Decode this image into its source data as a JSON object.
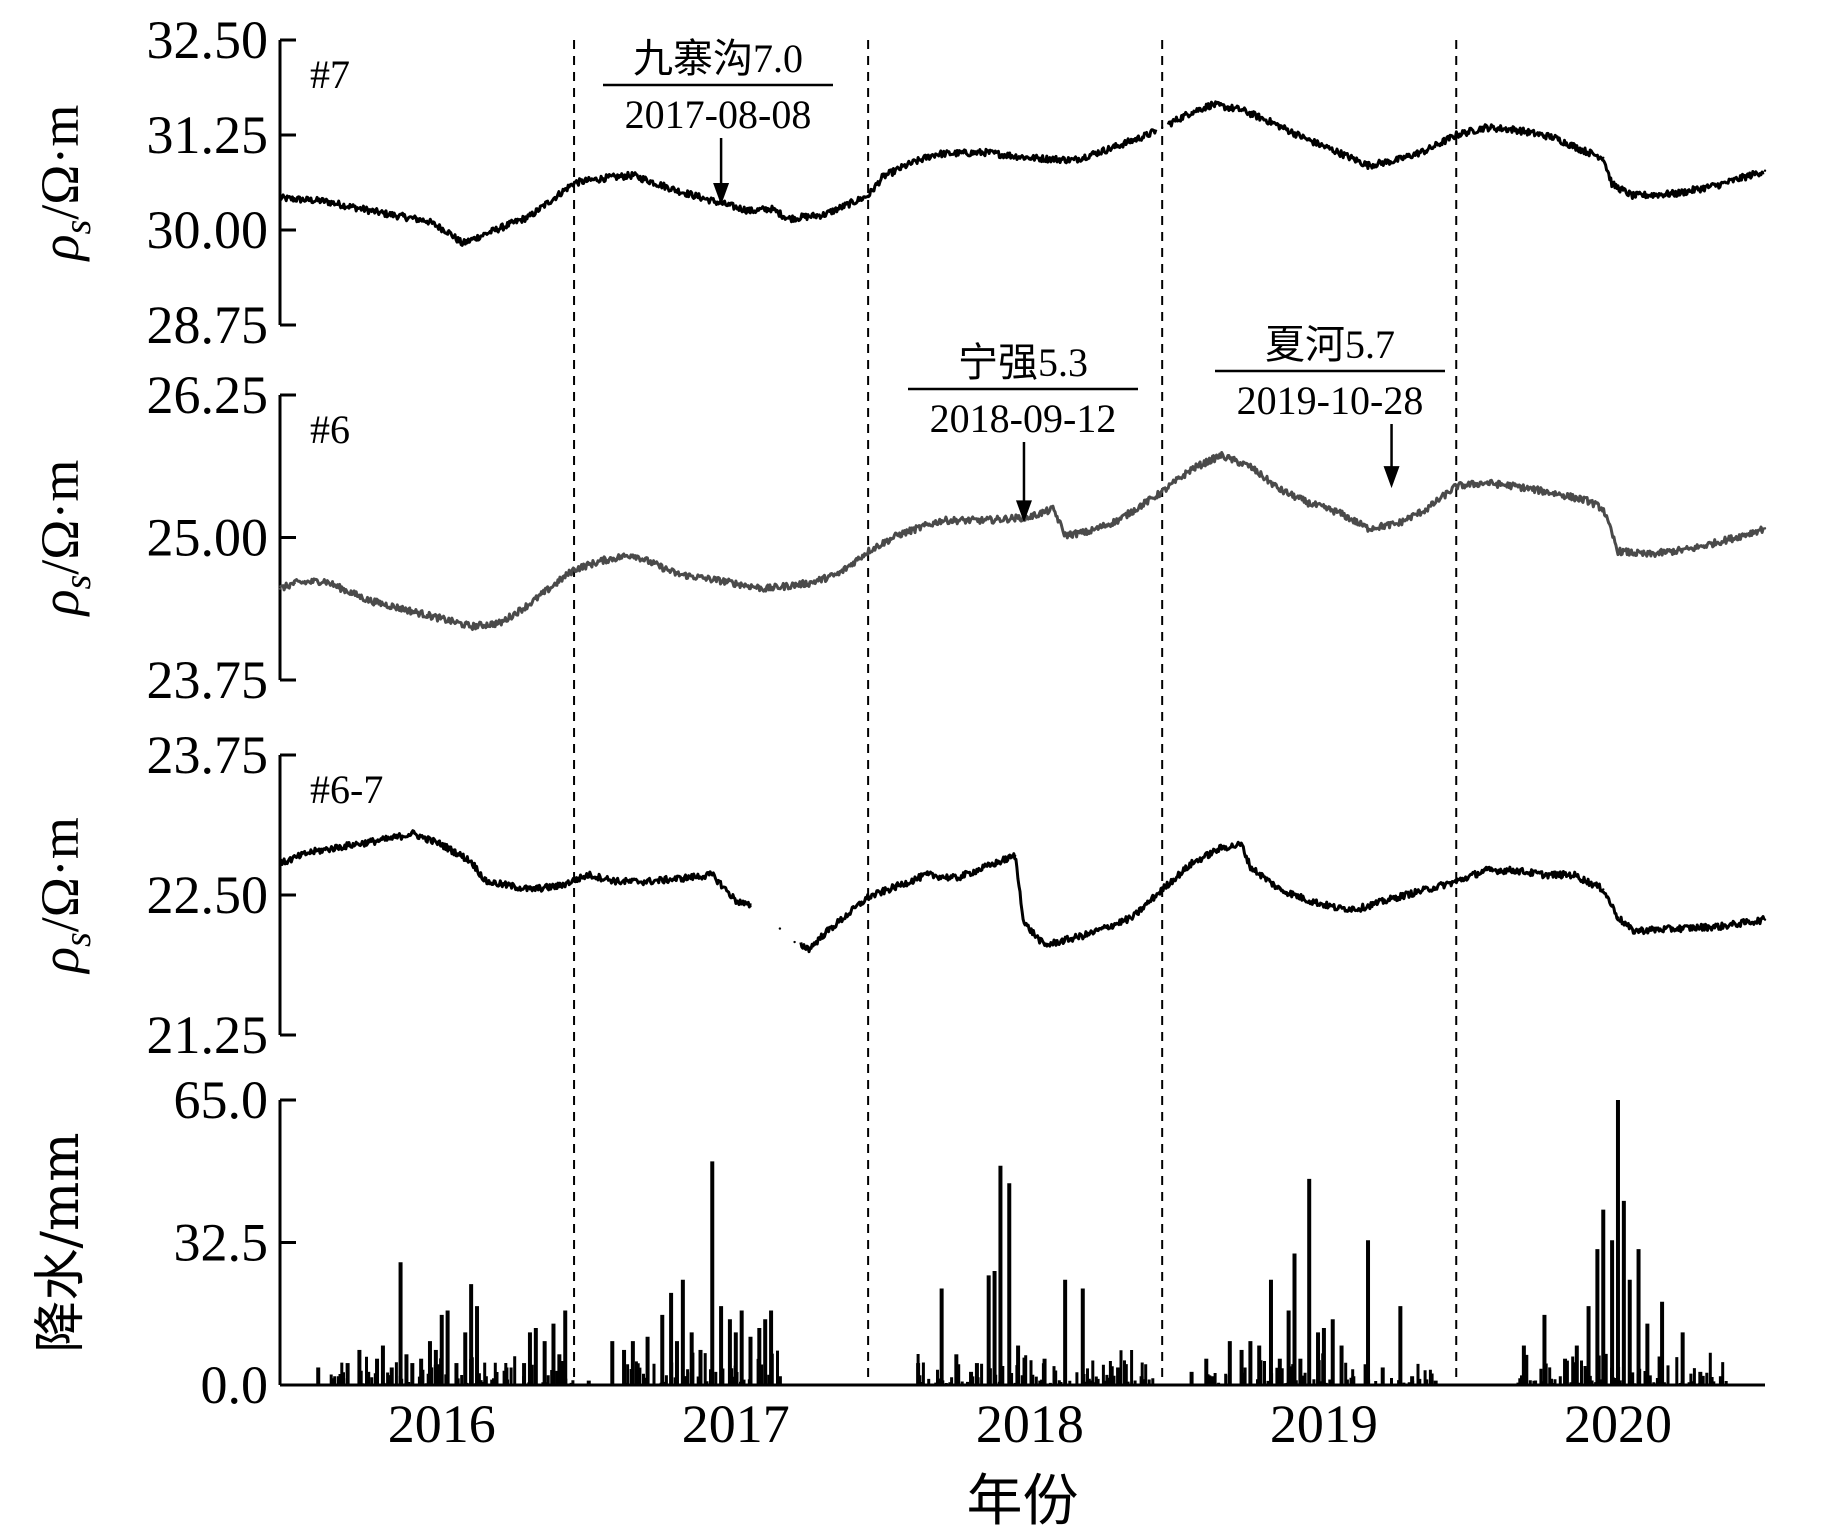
{
  "chart_data": {
    "type": "line",
    "x_axis": {
      "label": "年份",
      "ticks": [
        "2016",
        "2017",
        "2018",
        "2019",
        "2020"
      ],
      "range": [
        2015.45,
        2020.5
      ],
      "year_dividers": [
        2016.45,
        2017.45,
        2018.45,
        2019.45
      ]
    },
    "panels": [
      {
        "id": "p7",
        "label": "#7",
        "ylabel": "ρs/Ω·m",
        "ylim": [
          28.75,
          32.5
        ],
        "yticks": [
          "32.50",
          "31.25",
          "30.00",
          "28.75"
        ],
        "color": "#000000",
        "points": [
          [
            2015.45,
            30.42
          ],
          [
            2015.6,
            30.38
          ],
          [
            2015.8,
            30.22
          ],
          [
            2015.95,
            30.12
          ],
          [
            2016.02,
            29.98
          ],
          [
            2016.07,
            29.82
          ],
          [
            2016.15,
            29.95
          ],
          [
            2016.3,
            30.18
          ],
          [
            2016.45,
            30.62
          ],
          [
            2016.55,
            30.68
          ],
          [
            2016.65,
            30.72
          ],
          [
            2016.8,
            30.52
          ],
          [
            2016.95,
            30.35
          ],
          [
            2017.05,
            30.25
          ],
          [
            2017.12,
            30.28
          ],
          [
            2017.18,
            30.15
          ],
          [
            2017.3,
            30.2
          ],
          [
            2017.45,
            30.45
          ],
          [
            2017.5,
            30.7
          ],
          [
            2017.58,
            30.85
          ],
          [
            2017.68,
            31.0
          ],
          [
            2017.85,
            31.02
          ],
          [
            2018.0,
            30.95
          ],
          [
            2018.15,
            30.92
          ],
          [
            2018.28,
            31.08
          ],
          [
            2018.4,
            31.25
          ],
          [
            2018.45,
            31.35
          ],
          [
            2018.55,
            31.55
          ],
          [
            2018.62,
            31.65
          ],
          [
            2018.72,
            31.58
          ],
          [
            2018.82,
            31.42
          ],
          [
            2018.95,
            31.18
          ],
          [
            2019.05,
            31.02
          ],
          [
            2019.15,
            30.85
          ],
          [
            2019.25,
            30.92
          ],
          [
            2019.35,
            31.05
          ],
          [
            2019.45,
            31.25
          ],
          [
            2019.55,
            31.35
          ],
          [
            2019.65,
            31.32
          ],
          [
            2019.78,
            31.22
          ],
          [
            2019.88,
            31.05
          ],
          [
            2019.95,
            30.95
          ],
          [
            2019.98,
            30.6
          ],
          [
            2020.05,
            30.45
          ],
          [
            2020.2,
            30.48
          ],
          [
            2020.35,
            30.6
          ],
          [
            2020.5,
            30.78
          ]
        ],
        "gaps": [
          [
            2018.43,
            2018.47
          ]
        ]
      },
      {
        "id": "p6",
        "label": "#6",
        "ylabel": "ρs/Ω·m",
        "ylim": [
          23.75,
          26.25
        ],
        "yticks": [
          "26.25",
          "25.00",
          "23.75"
        ],
        "color": "#4a4a4a",
        "points": [
          [
            2015.45,
            24.55
          ],
          [
            2015.5,
            24.6
          ],
          [
            2015.6,
            24.62
          ],
          [
            2015.75,
            24.45
          ],
          [
            2015.95,
            24.32
          ],
          [
            2016.1,
            24.22
          ],
          [
            2016.2,
            24.25
          ],
          [
            2016.3,
            24.42
          ],
          [
            2016.45,
            24.72
          ],
          [
            2016.55,
            24.8
          ],
          [
            2016.65,
            24.85
          ],
          [
            2016.8,
            24.68
          ],
          [
            2016.95,
            24.62
          ],
          [
            2017.1,
            24.55
          ],
          [
            2017.25,
            24.6
          ],
          [
            2017.35,
            24.68
          ],
          [
            2017.45,
            24.88
          ],
          [
            2017.55,
            25.02
          ],
          [
            2017.7,
            25.15
          ],
          [
            2017.85,
            25.15
          ],
          [
            2018.0,
            25.18
          ],
          [
            2018.08,
            25.25
          ],
          [
            2018.12,
            25.02
          ],
          [
            2018.2,
            25.05
          ],
          [
            2018.3,
            25.15
          ],
          [
            2018.45,
            25.4
          ],
          [
            2018.55,
            25.6
          ],
          [
            2018.65,
            25.72
          ],
          [
            2018.75,
            25.62
          ],
          [
            2018.85,
            25.42
          ],
          [
            2018.95,
            25.3
          ],
          [
            2019.05,
            25.22
          ],
          [
            2019.15,
            25.08
          ],
          [
            2019.25,
            25.12
          ],
          [
            2019.35,
            25.25
          ],
          [
            2019.45,
            25.45
          ],
          [
            2019.55,
            25.48
          ],
          [
            2019.65,
            25.45
          ],
          [
            2019.8,
            25.38
          ],
          [
            2019.9,
            25.32
          ],
          [
            2019.95,
            25.25
          ],
          [
            2020.0,
            24.88
          ],
          [
            2020.1,
            24.85
          ],
          [
            2020.25,
            24.9
          ],
          [
            2020.4,
            25.0
          ],
          [
            2020.5,
            25.08
          ]
        ],
        "gaps": []
      },
      {
        "id": "p67",
        "label": "#6-7",
        "ylabel": "ρs/Ω·m",
        "ylim": [
          21.25,
          23.75
        ],
        "yticks": [
          "23.75",
          "22.50",
          "21.25"
        ],
        "color": "#000000",
        "points": [
          [
            2015.45,
            22.78
          ],
          [
            2015.55,
            22.88
          ],
          [
            2015.7,
            22.95
          ],
          [
            2015.82,
            23.0
          ],
          [
            2015.9,
            23.05
          ],
          [
            2016.0,
            22.95
          ],
          [
            2016.1,
            22.8
          ],
          [
            2016.15,
            22.62
          ],
          [
            2016.3,
            22.55
          ],
          [
            2016.4,
            22.58
          ],
          [
            2016.5,
            22.68
          ],
          [
            2016.6,
            22.62
          ],
          [
            2016.7,
            22.62
          ],
          [
            2016.82,
            22.65
          ],
          [
            2016.92,
            22.68
          ],
          [
            2017.0,
            22.45
          ],
          [
            2017.05,
            22.4
          ],
          [
            2017.15,
            22.2
          ],
          [
            2017.2,
            22.08
          ],
          [
            2017.25,
            22.02
          ],
          [
            2017.3,
            22.15
          ],
          [
            2017.45,
            22.48
          ],
          [
            2017.55,
            22.58
          ],
          [
            2017.65,
            22.68
          ],
          [
            2017.75,
            22.65
          ],
          [
            2017.88,
            22.78
          ],
          [
            2017.95,
            22.85
          ],
          [
            2017.98,
            22.25
          ],
          [
            2018.05,
            22.05
          ],
          [
            2018.2,
            22.15
          ],
          [
            2018.35,
            22.3
          ],
          [
            2018.45,
            22.55
          ],
          [
            2018.55,
            22.78
          ],
          [
            2018.65,
            22.92
          ],
          [
            2018.72,
            22.95
          ],
          [
            2018.75,
            22.75
          ],
          [
            2018.85,
            22.55
          ],
          [
            2018.95,
            22.45
          ],
          [
            2019.05,
            22.38
          ],
          [
            2019.12,
            22.38
          ],
          [
            2019.25,
            22.48
          ],
          [
            2019.45,
            22.62
          ],
          [
            2019.55,
            22.72
          ],
          [
            2019.65,
            22.72
          ],
          [
            2019.75,
            22.68
          ],
          [
            2019.85,
            22.68
          ],
          [
            2019.95,
            22.55
          ],
          [
            2020.0,
            22.3
          ],
          [
            2020.05,
            22.18
          ],
          [
            2020.2,
            22.2
          ],
          [
            2020.35,
            22.22
          ],
          [
            2020.5,
            22.28
          ]
        ],
        "gaps": [
          [
            2017.05,
            2017.22
          ]
        ]
      },
      {
        "id": "prain",
        "label": "",
        "ylabel": "降水/mm",
        "ylim": [
          0,
          65
        ],
        "yticks": [
          "65.0",
          "32.5",
          "0.0"
        ],
        "type": "bar",
        "color": "#000000",
        "bars": [
          [
            2015.58,
            4
          ],
          [
            2015.65,
            2
          ],
          [
            2015.68,
            5
          ],
          [
            2015.72,
            8
          ],
          [
            2015.75,
            3
          ],
          [
            2015.78,
            6
          ],
          [
            2015.8,
            9
          ],
          [
            2015.83,
            4
          ],
          [
            2015.86,
            28
          ],
          [
            2015.88,
            7
          ],
          [
            2015.9,
            5
          ],
          [
            2015.93,
            6
          ],
          [
            2015.96,
            10
          ],
          [
            2015.98,
            8
          ],
          [
            2016.0,
            16
          ],
          [
            2016.02,
            17
          ],
          [
            2016.05,
            5
          ],
          [
            2016.08,
            12
          ],
          [
            2016.1,
            23
          ],
          [
            2016.12,
            18
          ],
          [
            2016.15,
            2
          ],
          [
            2016.22,
            4
          ],
          [
            2016.28,
            5
          ],
          [
            2016.3,
            12
          ],
          [
            2016.32,
            13
          ],
          [
            2016.35,
            10
          ],
          [
            2016.38,
            14
          ],
          [
            2016.4,
            7
          ],
          [
            2016.42,
            17
          ],
          [
            2016.5,
            1
          ],
          [
            2016.58,
            10
          ],
          [
            2016.62,
            8
          ],
          [
            2016.65,
            10
          ],
          [
            2016.7,
            11
          ],
          [
            2016.75,
            16
          ],
          [
            2016.78,
            21
          ],
          [
            2016.8,
            10
          ],
          [
            2016.82,
            24
          ],
          [
            2016.85,
            12
          ],
          [
            2016.88,
            8
          ],
          [
            2016.92,
            51
          ],
          [
            2016.95,
            18
          ],
          [
            2016.98,
            15
          ],
          [
            2017.0,
            12
          ],
          [
            2017.02,
            17
          ],
          [
            2017.05,
            11
          ],
          [
            2017.08,
            13
          ],
          [
            2017.1,
            15
          ],
          [
            2017.12,
            17
          ],
          [
            2017.15,
            2
          ],
          [
            2017.62,
            5
          ],
          [
            2017.7,
            22
          ],
          [
            2017.75,
            7
          ],
          [
            2017.8,
            3
          ],
          [
            2017.82,
            5
          ],
          [
            2017.86,
            25
          ],
          [
            2017.88,
            26
          ],
          [
            2017.9,
            50
          ],
          [
            2017.93,
            46
          ],
          [
            2017.96,
            9
          ],
          [
            2018.05,
            6
          ],
          [
            2018.12,
            24
          ],
          [
            2018.18,
            22
          ],
          [
            2018.3,
            4
          ],
          [
            2018.38,
            2
          ],
          [
            2018.55,
            3
          ],
          [
            2018.6,
            6
          ],
          [
            2018.62,
            2
          ],
          [
            2018.68,
            10
          ],
          [
            2018.72,
            8
          ],
          [
            2018.75,
            10
          ],
          [
            2018.78,
            9
          ],
          [
            2018.82,
            24
          ],
          [
            2018.85,
            6
          ],
          [
            2018.88,
            17
          ],
          [
            2018.9,
            30
          ],
          [
            2018.92,
            6
          ],
          [
            2018.95,
            47
          ],
          [
            2018.98,
            12
          ],
          [
            2019.0,
            13
          ],
          [
            2019.03,
            15
          ],
          [
            2019.06,
            9
          ],
          [
            2019.1,
            2
          ],
          [
            2019.15,
            33
          ],
          [
            2019.2,
            4
          ],
          [
            2019.26,
            18
          ],
          [
            2019.3,
            2
          ],
          [
            2019.38,
            1
          ],
          [
            2019.68,
            9
          ],
          [
            2019.75,
            16
          ],
          [
            2019.82,
            6
          ],
          [
            2019.86,
            9
          ],
          [
            2019.9,
            18
          ],
          [
            2019.93,
            31
          ],
          [
            2019.95,
            40
          ],
          [
            2019.98,
            33
          ],
          [
            2020.0,
            65
          ],
          [
            2020.02,
            42
          ],
          [
            2020.04,
            24
          ],
          [
            2020.07,
            31
          ],
          [
            2020.1,
            14
          ],
          [
            2020.15,
            19
          ],
          [
            2020.22,
            12
          ],
          [
            2020.28,
            3
          ],
          [
            2020.35,
            2
          ]
        ]
      }
    ],
    "annotations": [
      {
        "panel": "p7",
        "top": "九寨沟7.0",
        "bottom": "2017-08-08",
        "x": 2016.95,
        "y": 30.25
      },
      {
        "panel": "p6",
        "top": "宁强5.3",
        "bottom": "2018-09-12",
        "x": 2017.98,
        "y": 25.08
      },
      {
        "panel": "p6",
        "top": "夏河5.7",
        "bottom": "2019-10-28",
        "x": 2019.23,
        "y": 25.38
      }
    ]
  }
}
